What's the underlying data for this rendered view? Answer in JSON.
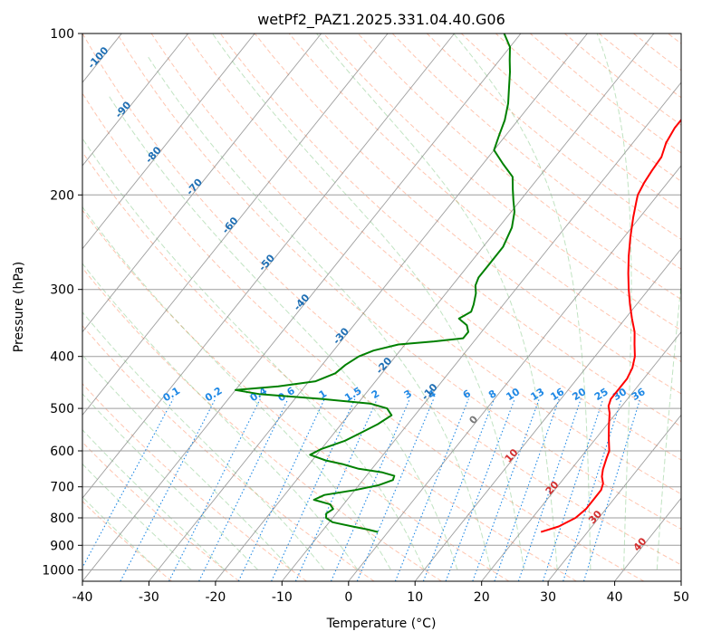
{
  "chart_data": {
    "type": "skew-t",
    "title": "wetPf2_PAZ1.2025.331.04.40.G06",
    "xlabel": "Temperature (°C)",
    "ylabel": "Pressure (hPa)",
    "xlim": [
      -40,
      50
    ],
    "ylim": [
      1050,
      100
    ],
    "x_ticks": [
      "-40",
      "-30",
      "-20",
      "-10",
      "0",
      "10",
      "20",
      "30",
      "40",
      "50"
    ],
    "x_tick_values": [
      -40,
      -30,
      -20,
      -10,
      0,
      10,
      20,
      30,
      40,
      50
    ],
    "y_ticks": [
      "100",
      "200",
      "300",
      "400",
      "500",
      "600",
      "700",
      "800",
      "900",
      "1000"
    ],
    "y_tick_values": [
      100,
      200,
      300,
      400,
      500,
      600,
      700,
      800,
      900,
      1000
    ],
    "isotherm_labels_cold": [
      {
        "text": "-100",
        "t": -100,
        "p": 112
      },
      {
        "text": "-90",
        "t": -90,
        "p": 140
      },
      {
        "text": "-80",
        "t": -80,
        "p": 170
      },
      {
        "text": "-70",
        "t": -70,
        "p": 195
      },
      {
        "text": "-60",
        "t": -60,
        "p": 230
      },
      {
        "text": "-50",
        "t": -50,
        "p": 270
      },
      {
        "text": "-40",
        "t": -40,
        "p": 320
      },
      {
        "text": "-30",
        "t": -30,
        "p": 370
      },
      {
        "text": "-20",
        "t": -20,
        "p": 420
      },
      {
        "text": "-10",
        "t": -10,
        "p": 470
      }
    ],
    "isotherm_labels_warm": [
      {
        "text": "0",
        "t": 0,
        "p": 530
      },
      {
        "text": "10",
        "t": 10,
        "p": 618
      },
      {
        "text": "20",
        "t": 20,
        "p": 710
      },
      {
        "text": "30",
        "t": 30,
        "p": 805
      },
      {
        "text": "40",
        "t": 40,
        "p": 905
      }
    ],
    "mixing_ratio_labels": [
      "0.1",
      "0.2",
      "0.4",
      "0.6",
      "1",
      "1.5",
      "2",
      "3",
      "4",
      "6",
      "8",
      "10",
      "13",
      "16",
      "20",
      "25",
      "30",
      "36"
    ],
    "mixing_ratio_values": [
      0.1,
      0.2,
      0.4,
      0.6,
      1,
      1.5,
      2,
      3,
      4,
      6,
      8,
      10,
      13,
      16,
      20,
      25,
      30,
      36
    ],
    "mixing_ratio_label_pressure": 480,
    "series": [
      {
        "name": "temperature",
        "color": "#ff0000",
        "points": [
          [
            850,
            23.0
          ],
          [
            830,
            25.0
          ],
          [
            800,
            26.5
          ],
          [
            770,
            27.0
          ],
          [
            740,
            27.0
          ],
          [
            710,
            27.0
          ],
          [
            690,
            26.5
          ],
          [
            670,
            25.5
          ],
          [
            650,
            24.8
          ],
          [
            620,
            24.0
          ],
          [
            600,
            23.5
          ],
          [
            570,
            22.0
          ],
          [
            540,
            20.5
          ],
          [
            510,
            19.0
          ],
          [
            495,
            18.0
          ],
          [
            480,
            17.5
          ],
          [
            465,
            17.5
          ],
          [
            440,
            17.5
          ],
          [
            420,
            17.0
          ],
          [
            400,
            16.0
          ],
          [
            380,
            14.5
          ],
          [
            360,
            13.0
          ],
          [
            340,
            11.0
          ],
          [
            320,
            9.0
          ],
          [
            300,
            7.0
          ],
          [
            280,
            5.0
          ],
          [
            260,
            3.0
          ],
          [
            240,
            1.0
          ],
          [
            220,
            -1.0
          ],
          [
            205,
            -2.5
          ],
          [
            200,
            -3.0
          ],
          [
            190,
            -3.5
          ],
          [
            180,
            -3.8
          ],
          [
            170,
            -4.0
          ],
          [
            160,
            -5.0
          ],
          [
            150,
            -5.5
          ],
          [
            140,
            -5.5
          ],
          [
            132,
            -5.0
          ],
          [
            125,
            -4.5
          ],
          [
            118,
            -5.0
          ],
          [
            112,
            -5.5
          ],
          [
            107,
            -6.0
          ],
          [
            100,
            -7.0
          ]
        ]
      },
      {
        "name": "dewpoint",
        "color": "#008000",
        "points": [
          [
            850,
            -1.5
          ],
          [
            840,
            -3.5
          ],
          [
            830,
            -6.0
          ],
          [
            815,
            -9.5
          ],
          [
            800,
            -11.0
          ],
          [
            785,
            -11.5
          ],
          [
            770,
            -11.0
          ],
          [
            755,
            -12.0
          ],
          [
            740,
            -15.0
          ],
          [
            725,
            -14.0
          ],
          [
            710,
            -10.0
          ],
          [
            695,
            -7.0
          ],
          [
            680,
            -5.5
          ],
          [
            668,
            -5.8
          ],
          [
            658,
            -8.0
          ],
          [
            648,
            -12.0
          ],
          [
            635,
            -15.0
          ],
          [
            625,
            -18.0
          ],
          [
            610,
            -21.0
          ],
          [
            595,
            -20.0
          ],
          [
            575,
            -17.5
          ],
          [
            555,
            -16.0
          ],
          [
            535,
            -14.5
          ],
          [
            515,
            -13.5
          ],
          [
            500,
            -15.0
          ],
          [
            490,
            -18.0
          ],
          [
            480,
            -26.0
          ],
          [
            470,
            -36.0
          ],
          [
            462,
            -40.0
          ],
          [
            455,
            -34.0
          ],
          [
            445,
            -29.0
          ],
          [
            430,
            -27.0
          ],
          [
            415,
            -26.5
          ],
          [
            400,
            -25.5
          ],
          [
            390,
            -24.0
          ],
          [
            380,
            -21.0
          ],
          [
            375,
            -16.0
          ],
          [
            370,
            -12.0
          ],
          [
            360,
            -12.0
          ],
          [
            350,
            -13.0
          ],
          [
            340,
            -15.0
          ],
          [
            330,
            -14.0
          ],
          [
            320,
            -14.5
          ],
          [
            305,
            -15.5
          ],
          [
            295,
            -16.5
          ],
          [
            285,
            -17.0
          ],
          [
            270,
            -17.0
          ],
          [
            250,
            -17.0
          ],
          [
            230,
            -18.0
          ],
          [
            215,
            -19.5
          ],
          [
            205,
            -21.0
          ],
          [
            195,
            -22.5
          ],
          [
            185,
            -24.0
          ],
          [
            175,
            -27.0
          ],
          [
            165,
            -30.0
          ],
          [
            155,
            -31.0
          ],
          [
            145,
            -32.0
          ],
          [
            135,
            -33.5
          ],
          [
            125,
            -35.5
          ],
          [
            118,
            -37.0
          ],
          [
            112,
            -38.5
          ],
          [
            106,
            -40.0
          ],
          [
            100,
            -42.5
          ]
        ]
      }
    ]
  }
}
